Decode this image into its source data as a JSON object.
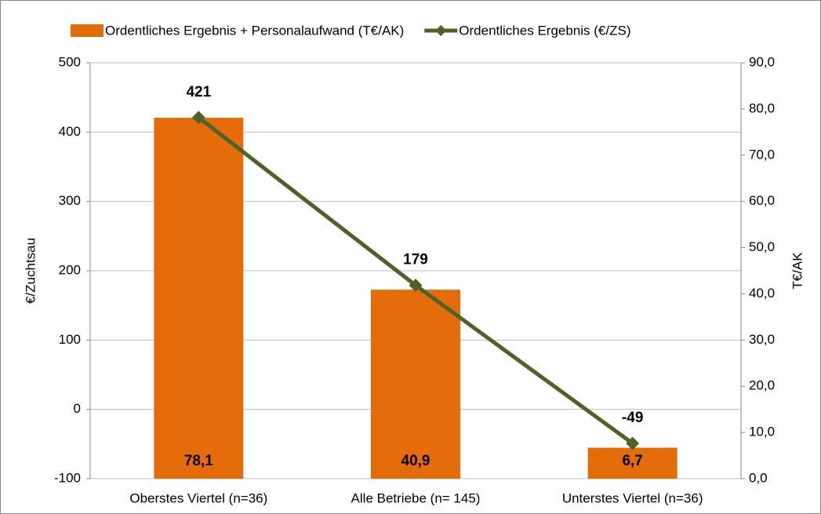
{
  "chart_data": {
    "type": "bar-line",
    "categories": [
      "Oberstes Viertel (n=36)",
      "Alle Betriebe (n= 145)",
      "Unterstes Viertel (n=36)"
    ],
    "series": [
      {
        "name": "Ordentliches Ergebnis + Personalaufwand (T€/AK)",
        "type": "bar",
        "axis": "y2",
        "color": "#e46c0a",
        "values": [
          78.1,
          40.9,
          6.7
        ],
        "value_labels": [
          "78,1",
          "40,9",
          "6,7"
        ]
      },
      {
        "name": "Ordentliches Ergebnis (€/ZS)",
        "type": "line",
        "axis": "y",
        "color": "#4f6228",
        "values": [
          421,
          179,
          -49
        ]
      }
    ],
    "ylabel": "€/Zuchtsau",
    "y2label": "T€/AK",
    "ylim": [
      -100,
      500
    ],
    "yticks": [
      -100,
      0,
      100,
      200,
      300,
      400,
      500
    ],
    "y2lim": [
      0,
      90
    ],
    "y2ticks": [
      {
        "value": 0,
        "label": "0,0"
      },
      {
        "value": 10,
        "label": "10,0"
      },
      {
        "value": 20,
        "label": "20,0"
      },
      {
        "value": 30,
        "label": "30,0"
      },
      {
        "value": 40,
        "label": "40,0"
      },
      {
        "value": 50,
        "label": "50,0"
      },
      {
        "value": 60,
        "label": "60,0"
      },
      {
        "value": 70,
        "label": "70,0"
      },
      {
        "value": 80,
        "label": "80,0"
      },
      {
        "value": 90,
        "label": "90,0"
      }
    ],
    "grid": true,
    "legend": "top"
  }
}
